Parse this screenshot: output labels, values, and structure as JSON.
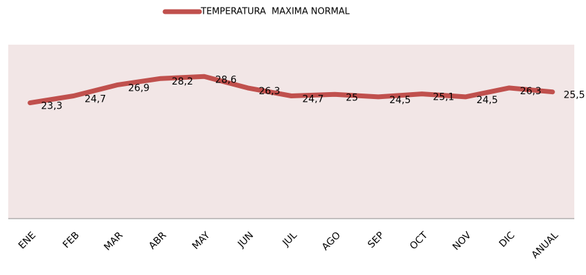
{
  "chart_data": {
    "type": "line",
    "categories": [
      "ENE",
      "FEB",
      "MAR",
      "ABR",
      "MAY",
      "JUN",
      "JUL",
      "AGO",
      "SEP",
      "OCT",
      "NOV",
      "DIC",
      "ANUAL"
    ],
    "series": [
      {
        "name": "TEMPERATURA  MAXIMA NORMAL",
        "color": "#c0504d",
        "values": [
          23.3,
          24.7,
          26.9,
          28.2,
          28.6,
          26.3,
          24.7,
          25,
          24.5,
          25.1,
          24.5,
          26.3,
          25.5
        ],
        "value_labels": [
          "23,3",
          "24,7",
          "26,9",
          "28,2",
          "28,6",
          "26,3",
          "24,7",
          "25",
          "24,5",
          "25,1",
          "24,5",
          "26,3",
          "25,5"
        ]
      }
    ],
    "ylim": [
      0,
      35
    ],
    "legend": "top",
    "plot_background": "#f2e6e6"
  }
}
